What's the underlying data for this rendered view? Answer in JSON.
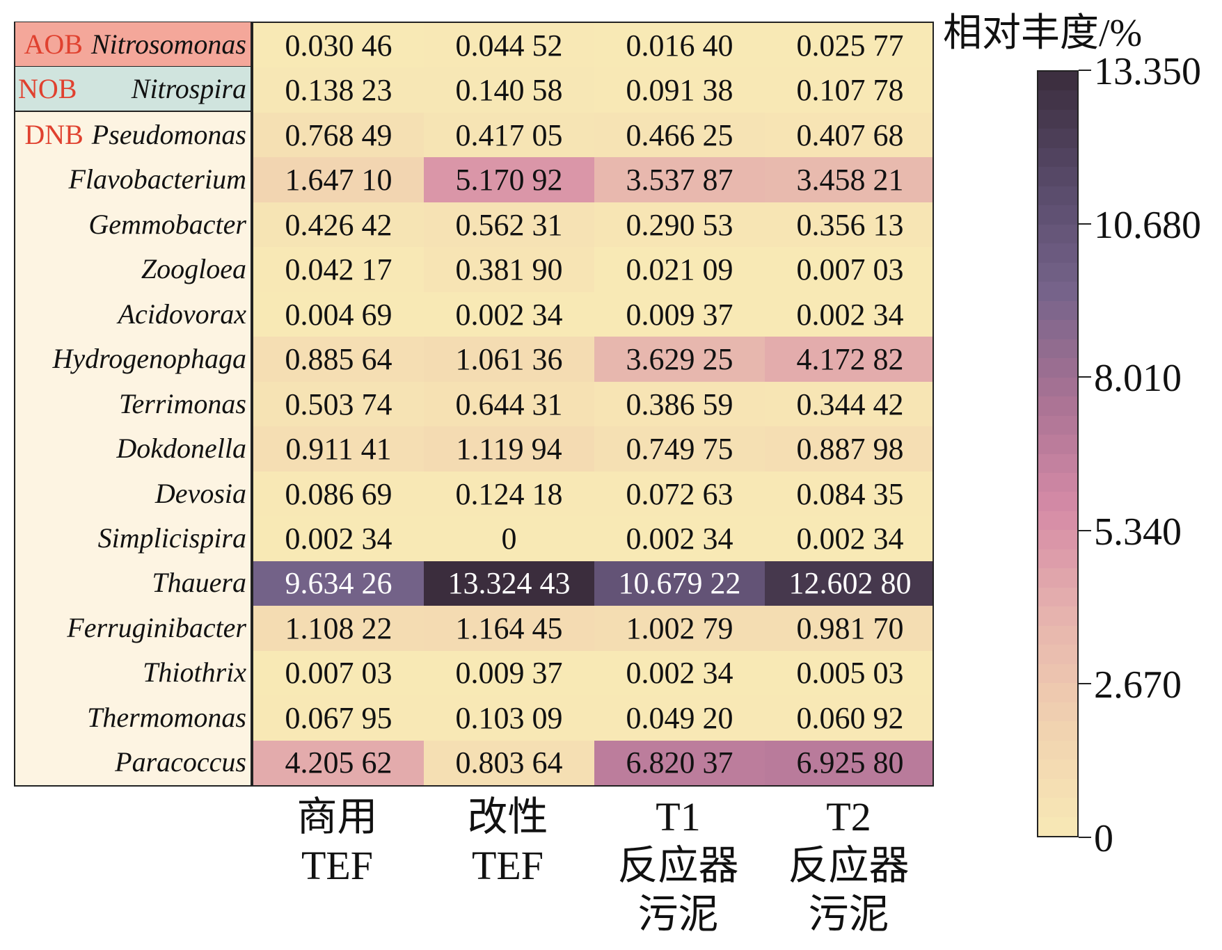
{
  "chart_data": {
    "type": "heatmap",
    "title": "相对丰度/%",
    "columns": [
      "商用\nTEF",
      "改性\nTEF",
      "T1\n反应器\n污泥",
      "T2\n反应器\n污泥"
    ],
    "rows": [
      {
        "group": "AOB",
        "name": "Nitrosomonas",
        "values": [
          "0.030 46",
          "0.044 52",
          "0.016 40",
          "0.025 77"
        ]
      },
      {
        "group": "NOB",
        "name": "Nitrospira",
        "values": [
          "0.138 23",
          "0.140 58",
          "0.091 38",
          "0.107 78"
        ]
      },
      {
        "group": "DNB",
        "name": "Pseudomonas",
        "values": [
          "0.768 49",
          "0.417 05",
          "0.466 25",
          "0.407 68"
        ]
      },
      {
        "group": "",
        "name": "Flavobacterium",
        "values": [
          "1.647 10",
          "5.170 92",
          "3.537 87",
          "3.458 21"
        ]
      },
      {
        "group": "",
        "name": "Gemmobacter",
        "values": [
          "0.426 42",
          "0.562 31",
          "0.290 53",
          "0.356 13"
        ]
      },
      {
        "group": "",
        "name": "Zoogloea",
        "values": [
          "0.042 17",
          "0.381 90",
          "0.021 09",
          "0.007 03"
        ]
      },
      {
        "group": "",
        "name": "Acidovorax",
        "values": [
          "0.004 69",
          "0.002 34",
          "0.009 37",
          "0.002 34"
        ]
      },
      {
        "group": "",
        "name": "Hydrogenophaga",
        "values": [
          "0.885 64",
          "1.061 36",
          "3.629 25",
          "4.172 82"
        ]
      },
      {
        "group": "",
        "name": "Terrimonas",
        "values": [
          "0.503 74",
          "0.644 31",
          "0.386 59",
          "0.344 42"
        ]
      },
      {
        "group": "",
        "name": "Dokdonella",
        "values": [
          "0.911 41",
          "1.119 94",
          "0.749 75",
          "0.887 98"
        ]
      },
      {
        "group": "",
        "name": "Devosia",
        "values": [
          "0.086 69",
          "0.124 18",
          "0.072 63",
          "0.084 35"
        ]
      },
      {
        "group": "",
        "name": "Simplicispira",
        "values": [
          "0.002 34",
          "0",
          "0.002 34",
          "0.002 34"
        ]
      },
      {
        "group": "",
        "name": "Thauera",
        "values": [
          "9.634 26",
          "13.324 43",
          "10.679 22",
          "12.602 80"
        ]
      },
      {
        "group": "",
        "name": "Ferruginibacter",
        "values": [
          "1.108 22",
          "1.164 45",
          "1.002 79",
          "0.981 70"
        ]
      },
      {
        "group": "",
        "name": "Thiothrix",
        "values": [
          "0.007 03",
          "0.009 37",
          "0.002 34",
          "0.005 03"
        ]
      },
      {
        "group": "",
        "name": "Thermomonas",
        "values": [
          "0.067 95",
          "0.103 09",
          "0.049 20",
          "0.060 92"
        ]
      },
      {
        "group": "",
        "name": "Paracoccus",
        "values": [
          "4.205 62",
          "0.803 64",
          "6.820 37",
          "6.925 80"
        ]
      }
    ],
    "colorbar": {
      "range": [
        0,
        13.35
      ],
      "ticks": [
        "0",
        "2.670",
        "5.340",
        "8.010",
        "10.680",
        "13.350"
      ]
    },
    "group_colors": {
      "AOB": "#f4a79a",
      "NOB": "#d0e4de",
      "DNB": "#fdf4e2"
    },
    "group_text_color": "#e0412f",
    "colormap": [
      "#f8e9b5",
      "#f1d2b0",
      "#e6b4ae",
      "#d58aa6",
      "#a97394",
      "#75638a",
      "#574968",
      "#3b2d3c"
    ]
  }
}
